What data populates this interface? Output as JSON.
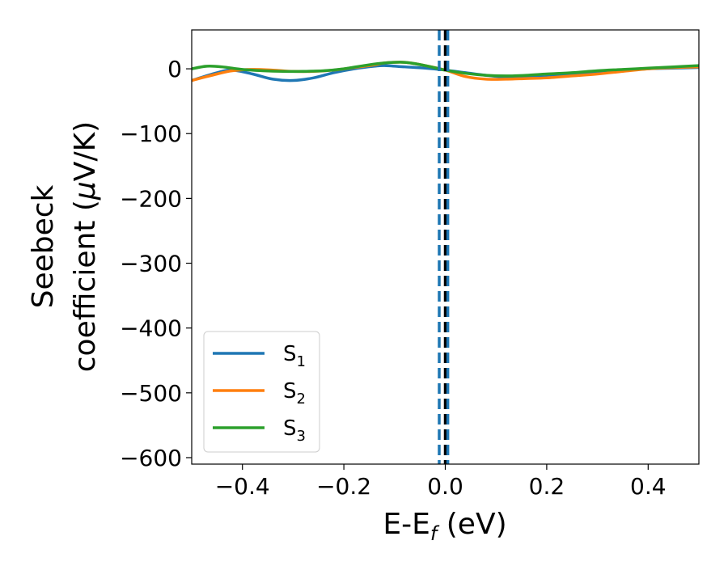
{
  "chart_data": {
    "type": "line",
    "xlabel": "E-E",
    "xlabel_sub": "f",
    "xlabel_tail": " (eV)",
    "ylabel_line1": "Seebeck",
    "ylabel_line2": "coefficient  (",
    "ylabel_mu": "μ",
    "ylabel_unit": "V/K)",
    "xlim": [
      -0.5,
      0.5
    ],
    "ylim": [
      -610,
      60
    ],
    "xticks": [
      -0.4,
      -0.2,
      0.0,
      0.2,
      0.4
    ],
    "xtick_labels": [
      "−0.4",
      "−0.2",
      "0.0",
      "0.2",
      "0.4"
    ],
    "yticks": [
      0,
      -100,
      -200,
      -300,
      -400,
      -500,
      -600
    ],
    "ytick_labels": [
      "0",
      "−100",
      "−200",
      "−300",
      "−400",
      "−500",
      "−600"
    ],
    "grid": false,
    "legend_position": "lower-left",
    "vlines": [
      {
        "x": -0.012,
        "style": "dashed",
        "color": "#1f77b4"
      },
      {
        "x": 0.0,
        "style": "dashed",
        "color": "#000000"
      },
      {
        "x": 0.005,
        "style": "dashed",
        "color": "#1f77b4"
      }
    ],
    "series": [
      {
        "name": "S",
        "sub": "1",
        "color": "#1f77b4",
        "x": [
          -0.5,
          -0.45,
          -0.42,
          -0.38,
          -0.34,
          -0.3,
          -0.26,
          -0.22,
          -0.18,
          -0.14,
          -0.12,
          -0.08,
          -0.04,
          0.0,
          0.04,
          0.08,
          0.12,
          0.16,
          0.2,
          0.25,
          0.3,
          0.35,
          0.4,
          0.45,
          0.5
        ],
        "y": [
          -18,
          -6,
          -2,
          -8,
          -16,
          -18,
          -14,
          -6,
          0,
          4,
          5,
          3,
          1,
          -2,
          -6,
          -10,
          -13,
          -13,
          -12,
          -8,
          -5,
          -2,
          0,
          1,
          2
        ]
      },
      {
        "name": "S",
        "sub": "2",
        "color": "#ff7f0e",
        "x": [
          -0.5,
          -0.45,
          -0.42,
          -0.38,
          -0.34,
          -0.3,
          -0.26,
          -0.22,
          -0.18,
          -0.14,
          -0.12,
          -0.08,
          -0.04,
          0.0,
          0.04,
          0.08,
          0.12,
          0.16,
          0.2,
          0.25,
          0.3,
          0.35,
          0.4,
          0.45,
          0.5
        ],
        "y": [
          -18,
          -8,
          -3,
          -1,
          -2,
          -4,
          -4,
          -2,
          2,
          6,
          9,
          10,
          5,
          -2,
          -12,
          -16,
          -16,
          -15,
          -14,
          -11,
          -8,
          -4,
          0,
          2,
          3
        ]
      },
      {
        "name": "S",
        "sub": "3",
        "color": "#2ca02c",
        "x": [
          -0.5,
          -0.47,
          -0.44,
          -0.4,
          -0.36,
          -0.32,
          -0.28,
          -0.24,
          -0.2,
          -0.16,
          -0.12,
          -0.08,
          -0.04,
          0.0,
          0.04,
          0.08,
          0.12,
          0.16,
          0.2,
          0.25,
          0.3,
          0.35,
          0.4,
          0.45,
          0.5
        ],
        "y": [
          0,
          4,
          3,
          -1,
          -3,
          -4,
          -4,
          -3,
          0,
          5,
          9,
          10,
          5,
          -2,
          -7,
          -10,
          -11,
          -10,
          -8,
          -6,
          -3,
          -1,
          1,
          3,
          5
        ]
      }
    ]
  }
}
